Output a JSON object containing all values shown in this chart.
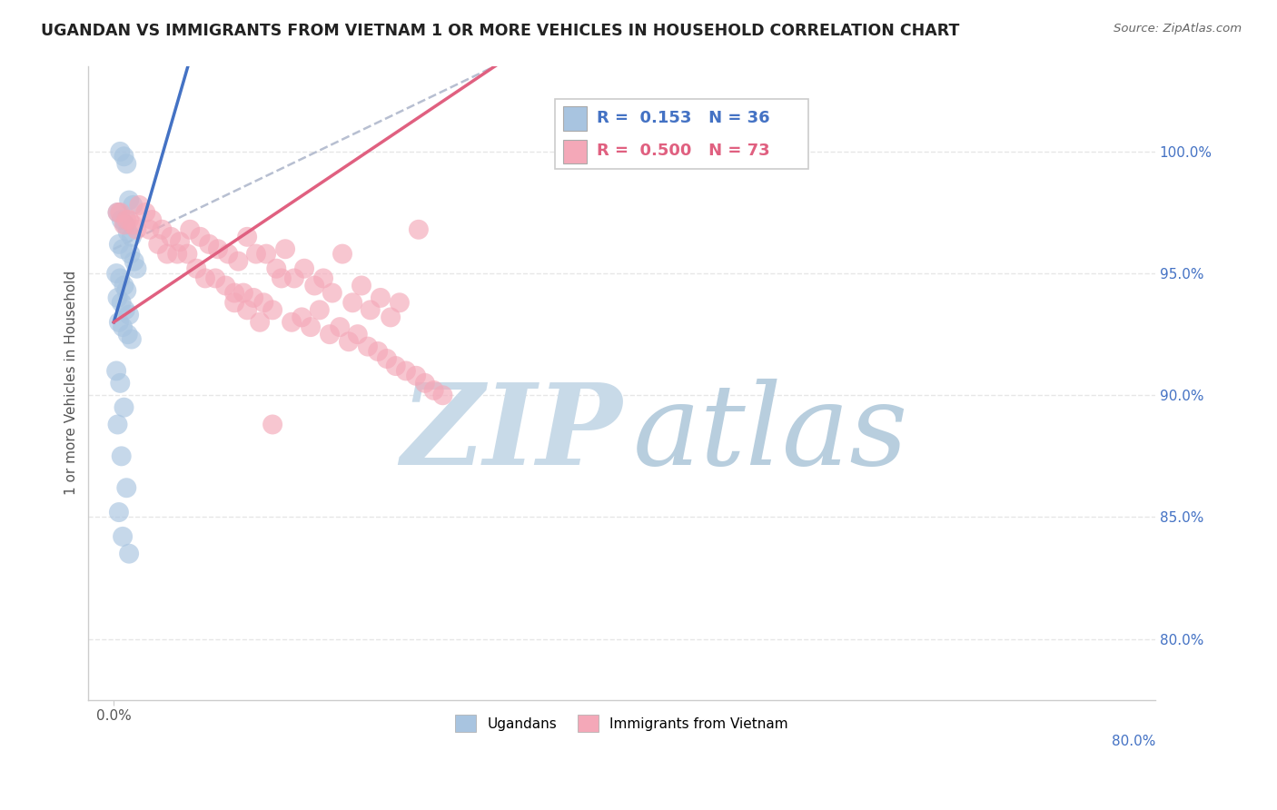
{
  "title": "UGANDAN VS IMMIGRANTS FROM VIETNAM 1 OR MORE VEHICLES IN HOUSEHOLD CORRELATION CHART",
  "source": "Source: ZipAtlas.com",
  "ylabel": "1 or more Vehicles in Household",
  "legend_blue_label": "Ugandans",
  "legend_pink_label": "Immigrants from Vietnam",
  "R_blue": 0.153,
  "N_blue": 36,
  "R_pink": 0.5,
  "N_pink": 73,
  "y_ticks_right": [
    "100.0%",
    "95.0%",
    "90.0%",
    "85.0%",
    "80.0%"
  ],
  "y_tick_vals": [
    1.0,
    0.95,
    0.9,
    0.85,
    0.8
  ],
  "x_left_label": "0.0%",
  "x_right_label": "80.0%",
  "xlim": [
    -0.02,
    0.82
  ],
  "ylim": [
    0.775,
    1.035
  ],
  "blue_color": "#a8c4e0",
  "pink_color": "#f4a8b8",
  "blue_line_color": "#4472c4",
  "pink_line_color": "#e06080",
  "dashed_line_color": "#b0b8cc",
  "grid_color": "#e0e0e0",
  "watermark_zip_color": "#c8dae8",
  "watermark_atlas_color": "#b8cede",
  "title_color": "#222222",
  "blue_x": [
    0.005,
    0.008,
    0.01,
    0.012,
    0.015,
    0.003,
    0.006,
    0.009,
    0.011,
    0.014,
    0.004,
    0.007,
    0.013,
    0.016,
    0.018,
    0.002,
    0.005,
    0.008,
    0.01,
    0.003,
    0.006,
    0.009,
    0.012,
    0.004,
    0.007,
    0.011,
    0.014,
    0.002,
    0.005,
    0.008,
    0.003,
    0.006,
    0.01,
    0.004,
    0.007,
    0.012
  ],
  "blue_y": [
    1.0,
    0.998,
    0.995,
    0.98,
    0.978,
    0.975,
    0.972,
    0.97,
    0.967,
    0.965,
    0.962,
    0.96,
    0.958,
    0.955,
    0.952,
    0.95,
    0.948,
    0.945,
    0.943,
    0.94,
    0.938,
    0.935,
    0.933,
    0.93,
    0.928,
    0.925,
    0.923,
    0.91,
    0.905,
    0.895,
    0.888,
    0.875,
    0.862,
    0.852,
    0.842,
    0.835
  ],
  "pink_x": [
    0.003,
    0.008,
    0.012,
    0.018,
    0.025,
    0.03,
    0.038,
    0.045,
    0.052,
    0.06,
    0.068,
    0.075,
    0.082,
    0.09,
    0.098,
    0.105,
    0.112,
    0.12,
    0.128,
    0.135,
    0.142,
    0.15,
    0.158,
    0.165,
    0.172,
    0.18,
    0.188,
    0.195,
    0.202,
    0.21,
    0.218,
    0.225,
    0.24,
    0.005,
    0.01,
    0.015,
    0.02,
    0.028,
    0.035,
    0.042,
    0.05,
    0.058,
    0.065,
    0.072,
    0.08,
    0.088,
    0.095,
    0.102,
    0.11,
    0.118,
    0.125,
    0.132,
    0.14,
    0.148,
    0.155,
    0.162,
    0.17,
    0.178,
    0.185,
    0.192,
    0.2,
    0.208,
    0.215,
    0.222,
    0.23,
    0.238,
    0.245,
    0.252,
    0.259,
    0.095,
    0.105,
    0.115,
    0.125
  ],
  "pink_y": [
    0.975,
    0.97,
    0.972,
    0.968,
    0.975,
    0.972,
    0.968,
    0.965,
    0.963,
    0.968,
    0.965,
    0.962,
    0.96,
    0.958,
    0.955,
    0.965,
    0.958,
    0.958,
    0.952,
    0.96,
    0.948,
    0.952,
    0.945,
    0.948,
    0.942,
    0.958,
    0.938,
    0.945,
    0.935,
    0.94,
    0.932,
    0.938,
    0.968,
    0.975,
    0.972,
    0.97,
    0.978,
    0.968,
    0.962,
    0.958,
    0.958,
    0.958,
    0.952,
    0.948,
    0.948,
    0.945,
    0.942,
    0.942,
    0.94,
    0.938,
    0.935,
    0.948,
    0.93,
    0.932,
    0.928,
    0.935,
    0.925,
    0.928,
    0.922,
    0.925,
    0.92,
    0.918,
    0.915,
    0.912,
    0.91,
    0.908,
    0.905,
    0.902,
    0.9,
    0.938,
    0.935,
    0.93,
    0.888
  ]
}
